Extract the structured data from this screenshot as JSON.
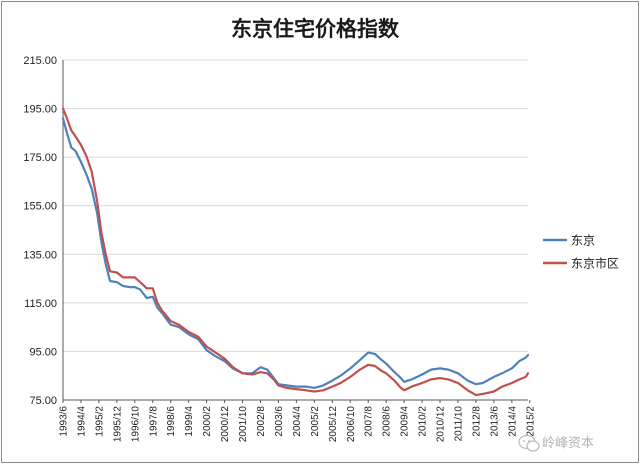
{
  "chart_data": {
    "type": "line",
    "title": "东京住宅价格指数",
    "xlabel": "",
    "ylabel": "",
    "ylim": [
      75,
      215
    ],
    "yticks": [
      "215.00",
      "195.00",
      "175.00",
      "155.00",
      "135.00",
      "115.00",
      "95.00",
      "75.00"
    ],
    "xlim": [
      1993.4167,
      2015.0
    ],
    "grid": true,
    "legend_position": "right",
    "xtick_labels": [
      {
        "label": "1993/6",
        "t": 1993.4167
      },
      {
        "label": "1994/4",
        "t": 1994.25
      },
      {
        "label": "1995/2",
        "t": 1995.0833
      },
      {
        "label": "1995/12",
        "t": 1995.9167
      },
      {
        "label": "1996/10",
        "t": 1996.75
      },
      {
        "label": "1997/8",
        "t": 1997.5833
      },
      {
        "label": "1998/6",
        "t": 1998.4167
      },
      {
        "label": "1999/4",
        "t": 1999.25
      },
      {
        "label": "2000/2",
        "t": 2000.0833
      },
      {
        "label": "2000/12",
        "t": 2000.9167
      },
      {
        "label": "2001/10",
        "t": 2001.75
      },
      {
        "label": "2002/8",
        "t": 2002.5833
      },
      {
        "label": "2003/6",
        "t": 2003.4167
      },
      {
        "label": "2004/4",
        "t": 2004.25
      },
      {
        "label": "2005/2",
        "t": 2005.0833
      },
      {
        "label": "2005/12",
        "t": 2005.9167
      },
      {
        "label": "2006/10",
        "t": 2006.75
      },
      {
        "label": "2007/8",
        "t": 2007.5833
      },
      {
        "label": "2008/6",
        "t": 2008.4167
      },
      {
        "label": "2009/4",
        "t": 2009.25
      },
      {
        "label": "2010/2",
        "t": 2010.0833
      },
      {
        "label": "2010/12",
        "t": 2010.9167
      },
      {
        "label": "2011/10",
        "t": 2011.75
      },
      {
        "label": "2012/8",
        "t": 2012.5833
      },
      {
        "label": "2013/6",
        "t": 2013.4167
      },
      {
        "label": "2014/4",
        "t": 2014.25
      },
      {
        "label": "2015/2",
        "t": 2015.0833
      }
    ],
    "series": [
      {
        "name": "东京",
        "color": "#4f81bd",
        "points": [
          [
            1993.4167,
            191
          ],
          [
            1993.6,
            185
          ],
          [
            1993.8,
            179
          ],
          [
            1994.0,
            177.5
          ],
          [
            1994.25,
            173
          ],
          [
            1994.5,
            168
          ],
          [
            1994.75,
            162
          ],
          [
            1995.0,
            152
          ],
          [
            1995.2,
            140
          ],
          [
            1995.4,
            131
          ],
          [
            1995.6,
            124
          ],
          [
            1995.9167,
            123.5
          ],
          [
            1996.2,
            122
          ],
          [
            1996.5,
            121.5
          ],
          [
            1996.75,
            121.5
          ],
          [
            1997.0,
            120.5
          ],
          [
            1997.3,
            117
          ],
          [
            1997.5833,
            117.5
          ],
          [
            1997.8,
            113
          ],
          [
            1998.0,
            111
          ],
          [
            1998.4167,
            106
          ],
          [
            1998.8,
            105
          ],
          [
            1999.25,
            102
          ],
          [
            1999.7,
            100
          ],
          [
            2000.0833,
            95.5
          ],
          [
            2000.5,
            93
          ],
          [
            2000.9167,
            91
          ],
          [
            2001.3,
            88
          ],
          [
            2001.75,
            86
          ],
          [
            2002.2,
            86
          ],
          [
            2002.5833,
            88.5
          ],
          [
            2002.9,
            87.5
          ],
          [
            2003.2,
            84
          ],
          [
            2003.4167,
            81.5
          ],
          [
            2003.8,
            81
          ],
          [
            2004.25,
            80.5
          ],
          [
            2004.7,
            80.5
          ],
          [
            2005.0833,
            80
          ],
          [
            2005.5,
            81
          ],
          [
            2005.9167,
            83
          ],
          [
            2006.3,
            85
          ],
          [
            2006.75,
            88
          ],
          [
            2007.2,
            91.5
          ],
          [
            2007.5833,
            94.5
          ],
          [
            2007.9,
            94
          ],
          [
            2008.2,
            91.5
          ],
          [
            2008.4167,
            90
          ],
          [
            2008.8,
            86.5
          ],
          [
            2009.1,
            84
          ],
          [
            2009.25,
            82.5
          ],
          [
            2009.6,
            83.5
          ],
          [
            2010.0833,
            85.5
          ],
          [
            2010.5,
            87.5
          ],
          [
            2010.9167,
            88
          ],
          [
            2011.3,
            87.5
          ],
          [
            2011.75,
            86
          ],
          [
            2012.2,
            83
          ],
          [
            2012.5833,
            81.5
          ],
          [
            2012.9,
            82
          ],
          [
            2013.4167,
            84.5
          ],
          [
            2013.8,
            86
          ],
          [
            2014.25,
            88
          ],
          [
            2014.6,
            91
          ],
          [
            2014.9,
            92.5
          ],
          [
            2015.0,
            93.5
          ]
        ]
      },
      {
        "name": "东京市区",
        "color": "#c0504d",
        "points": [
          [
            1993.4167,
            195
          ],
          [
            1993.6,
            191
          ],
          [
            1993.8,
            186
          ],
          [
            1994.0,
            183.5
          ],
          [
            1994.25,
            180
          ],
          [
            1994.5,
            175.5
          ],
          [
            1994.75,
            169
          ],
          [
            1995.0,
            157
          ],
          [
            1995.2,
            144
          ],
          [
            1995.4,
            135
          ],
          [
            1995.6,
            128
          ],
          [
            1995.9167,
            127.5
          ],
          [
            1996.2,
            125.5
          ],
          [
            1996.5,
            125.5
          ],
          [
            1996.75,
            125.5
          ],
          [
            1997.0,
            123.5
          ],
          [
            1997.3,
            121
          ],
          [
            1997.5833,
            121
          ],
          [
            1997.8,
            115
          ],
          [
            1998.0,
            112
          ],
          [
            1998.4167,
            107.5
          ],
          [
            1998.8,
            106
          ],
          [
            1999.25,
            103
          ],
          [
            1999.7,
            101
          ],
          [
            2000.0833,
            97
          ],
          [
            2000.5,
            94.5
          ],
          [
            2000.9167,
            92
          ],
          [
            2001.3,
            88.5
          ],
          [
            2001.75,
            86
          ],
          [
            2002.2,
            85.5
          ],
          [
            2002.5833,
            86.5
          ],
          [
            2002.9,
            86
          ],
          [
            2003.2,
            83.5
          ],
          [
            2003.4167,
            81
          ],
          [
            2003.8,
            80
          ],
          [
            2004.25,
            79.5
          ],
          [
            2004.7,
            79
          ],
          [
            2005.0833,
            78.5
          ],
          [
            2005.5,
            79
          ],
          [
            2005.9167,
            80.5
          ],
          [
            2006.3,
            82
          ],
          [
            2006.75,
            84.5
          ],
          [
            2007.2,
            87.5
          ],
          [
            2007.5833,
            89.5
          ],
          [
            2007.9,
            89
          ],
          [
            2008.2,
            87
          ],
          [
            2008.4167,
            86
          ],
          [
            2008.8,
            83
          ],
          [
            2009.1,
            80
          ],
          [
            2009.25,
            79
          ],
          [
            2009.6,
            80.5
          ],
          [
            2010.0833,
            82
          ],
          [
            2010.5,
            83.5
          ],
          [
            2010.9167,
            84
          ],
          [
            2011.3,
            83.5
          ],
          [
            2011.75,
            82
          ],
          [
            2012.2,
            79
          ],
          [
            2012.5833,
            77
          ],
          [
            2012.9,
            77.5
          ],
          [
            2013.4167,
            78.5
          ],
          [
            2013.8,
            80.5
          ],
          [
            2014.25,
            82
          ],
          [
            2014.6,
            83.5
          ],
          [
            2014.9,
            84.5
          ],
          [
            2015.0,
            86
          ]
        ]
      }
    ]
  },
  "watermark": {
    "text": "岭峰资本",
    "icon": "wechat-icon"
  },
  "colors": {
    "grid": "#d9d9d9",
    "axis": "#595959",
    "border": "#8c8c8c"
  }
}
